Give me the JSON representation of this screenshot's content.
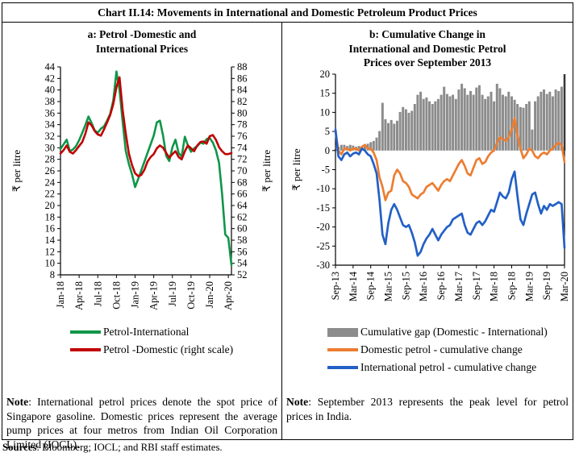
{
  "figure": {
    "title": "Chart II.14: Movements in International and Domestic Petroleum Product Prices",
    "sources_label": "Sources",
    "sources_text": ": Bloomberg; IOCL; and RBI staff estimates."
  },
  "panel_a": {
    "title_line1": "a: Petrol -Domestic and",
    "title_line2": "International Prices",
    "note_label": "Note",
    "note_text": ": International petrol prices denote the spot price of Singapore gasoline. Domestic prices represent the average pump prices at four metros from Indian Oil Corporation Limited (IOCL)."
  },
  "panel_b": {
    "title_line1": "b: Cumulative Change in",
    "title_line2": "International and Domestic Petrol",
    "title_line3": "Prices over September 2013",
    "note_label": "Note",
    "note_text": ": September 2013 represents the peak level for petrol prices in India."
  },
  "chart_data": [
    {
      "type": "line",
      "title": "a: Petrol -Domestic and International Prices",
      "ylabel_left": "₹ per litre",
      "ylabel_right": "₹ per litre",
      "ylim_left": [
        8,
        44
      ],
      "ylim_right": [
        52,
        88
      ],
      "ytick_step": 2,
      "x_tick_labels": [
        "Jan-18",
        "Apr-18",
        "Jul-18",
        "Oct-18",
        "Jan-19",
        "Apr-19",
        "Jul-19",
        "Oct-19",
        "Jan-20",
        "Apr-20"
      ],
      "x_tick_months": [
        0,
        3,
        6,
        9,
        12,
        15,
        18,
        21,
        24,
        27
      ],
      "x_month_span": 27.5,
      "points_per_month": 2,
      "grid": false,
      "legend_position": "below",
      "series": [
        {
          "name": "Petrol-International",
          "axis": "left",
          "color": "#0f9648",
          "values": [
            29.8,
            30.6,
            31.4,
            29.4,
            29.7,
            30.3,
            31.3,
            32.6,
            33.9,
            35.4,
            34.3,
            33.0,
            32.6,
            33.3,
            33.7,
            34.7,
            35.9,
            38.2,
            43.2,
            40.0,
            34.5,
            29.5,
            27.2,
            25.4,
            23.2,
            24.6,
            26.1,
            27.6,
            29.1,
            30.6,
            32.1,
            34.4,
            34.7,
            32.1,
            28.6,
            27.7,
            30.1,
            31.4,
            29.1,
            28.5,
            31.9,
            30.4,
            29.3,
            29.9,
            30.3,
            30.9,
            30.7,
            31.5,
            31.7,
            30.9,
            29.6,
            27.4,
            22.0,
            15.0,
            14.4,
            9.7
          ]
        },
        {
          "name": "Petrol -Domestic (right scale)",
          "axis": "right",
          "color": "#c00000",
          "values": [
            73.0,
            73.6,
            74.4,
            73.3,
            73.0,
            73.6,
            74.3,
            75.0,
            76.4,
            78.4,
            77.9,
            76.9,
            76.3,
            76.1,
            77.2,
            78.4,
            79.7,
            81.6,
            84.5,
            86.2,
            80.5,
            76.5,
            73.0,
            71.0,
            69.6,
            69.1,
            69.3,
            70.2,
            71.6,
            72.4,
            72.9,
            73.9,
            74.4,
            74.0,
            73.1,
            72.3,
            72.9,
            73.4,
            72.4,
            72.0,
            73.4,
            74.4,
            73.9,
            73.4,
            74.4,
            75.0,
            75.1,
            74.7,
            76.0,
            76.2,
            75.4,
            74.1,
            73.4,
            72.9,
            72.9,
            73.1
          ]
        }
      ]
    },
    {
      "type": "bar+line",
      "title": "b: Cumulative Change in International and Domestic Petrol Prices over September 2013",
      "ylabel": "₹ per litre",
      "ylim": [
        -30,
        20
      ],
      "ytick_step": 5,
      "x_tick_labels": [
        "Sep-13",
        "Mar-14",
        "Sep-14",
        "Mar-15",
        "Sep-15",
        "Mar-16",
        "Sep-16",
        "Mar-17",
        "Sep-17",
        "Mar-18",
        "Sep-18",
        "Mar-19",
        "Sep-19",
        "Mar-20"
      ],
      "x_tick_indices": [
        0,
        6,
        12,
        18,
        24,
        30,
        36,
        42,
        48,
        54,
        60,
        66,
        72,
        78
      ],
      "x_start": "Sep-13",
      "x_end": "Mar-20",
      "grid": false,
      "legend_position": "below",
      "bars": {
        "name": "Cumulative gap (Domestic - International)",
        "color": "#8c8c8c",
        "values": [
          0.3,
          1.0,
          1.5,
          1.5,
          1.2,
          1.5,
          1.3,
          1.0,
          1.2,
          0.8,
          1.5,
          1.8,
          2.2,
          2.5,
          3.4,
          5.1,
          12.5,
          8.2,
          7.2,
          8.0,
          7.0,
          7.8,
          10.1,
          11.4,
          10.8,
          9.9,
          10.4,
          12.2,
          14.6,
          15.4,
          13.5,
          13.9,
          12.9,
          12.2,
          12.9,
          13.5,
          14.6,
          16.7,
          14.8,
          14.2,
          14.6,
          13.5,
          16.0,
          17.5,
          16.3,
          14.6,
          15.6,
          14.6,
          16.5,
          17.1,
          14.6,
          13.5,
          14.2,
          15.4,
          12.9,
          17.5,
          16.3,
          14.6,
          14.2,
          15.4,
          14.2,
          13.3,
          12.2,
          11.4,
          11.2,
          12.2,
          12.9,
          5.5,
          12.9,
          14.2,
          15.4,
          16.0,
          14.8,
          15.4,
          14.2,
          16.0,
          15.6,
          16.7,
          20.0
        ]
      },
      "series": [
        {
          "name": "Domestic petrol - cumulative change",
          "color": "#ed7d31",
          "values": [
            5.0,
            0.0,
            -1.0,
            0.5,
            0.5,
            0.0,
            0.5,
            0.5,
            0.0,
            1.0,
            1.5,
            0.5,
            0.5,
            -0.5,
            -2.5,
            -7.0,
            -9.5,
            -13.0,
            -11.0,
            -10.5,
            -6.5,
            -5.0,
            -6.0,
            -8.0,
            -8.5,
            -9.5,
            -11.5,
            -12.0,
            -12.5,
            -11.5,
            -11.0,
            -9.5,
            -9.0,
            -8.5,
            -9.5,
            -10.5,
            -9.0,
            -8.0,
            -7.5,
            -8.0,
            -6.5,
            -5.0,
            -3.5,
            -2.5,
            -4.0,
            -6.0,
            -6.5,
            -4.5,
            -2.5,
            -2.0,
            -3.5,
            -3.0,
            -1.5,
            -0.5,
            0.0,
            2.0,
            3.5,
            3.0,
            2.5,
            3.5,
            5.5,
            8.5,
            4.0,
            0.5,
            -2.0,
            -1.0,
            0.5,
            0.0,
            -1.5,
            -2.0,
            -1.0,
            -0.5,
            -1.0,
            0.0,
            0.5,
            1.5,
            2.0,
            1.5,
            -3.0
          ]
        },
        {
          "name": "International petrol - cumulative change",
          "color": "#2360c6",
          "values": [
            5.5,
            -1.5,
            -2.5,
            -1.0,
            -0.5,
            -1.5,
            -0.8,
            -0.5,
            -1.0,
            0.5,
            0.0,
            -1.0,
            -1.5,
            -3.5,
            -6.0,
            -13.0,
            -22.0,
            -24.5,
            -19.0,
            -15.5,
            -14.0,
            -15.5,
            -17.5,
            -19.5,
            -20.0,
            -19.5,
            -21.5,
            -24.0,
            -27.5,
            -26.5,
            -24.5,
            -23.0,
            -22.0,
            -20.5,
            -22.0,
            -23.5,
            -22.0,
            -21.0,
            -20.0,
            -19.5,
            -18.0,
            -17.5,
            -17.0,
            -16.5,
            -19.5,
            -21.5,
            -22.0,
            -20.5,
            -19.0,
            -18.5,
            -19.5,
            -18.5,
            -17.0,
            -15.5,
            -16.0,
            -13.5,
            -11.0,
            -12.0,
            -12.5,
            -11.0,
            -7.5,
            -5.5,
            -12.0,
            -18.0,
            -19.5,
            -16.5,
            -14.0,
            -11.5,
            -11.0,
            -14.0,
            -16.5,
            -14.5,
            -15.5,
            -14.0,
            -14.5,
            -14.0,
            -13.5,
            -14.0,
            -25.5
          ]
        }
      ]
    }
  ]
}
